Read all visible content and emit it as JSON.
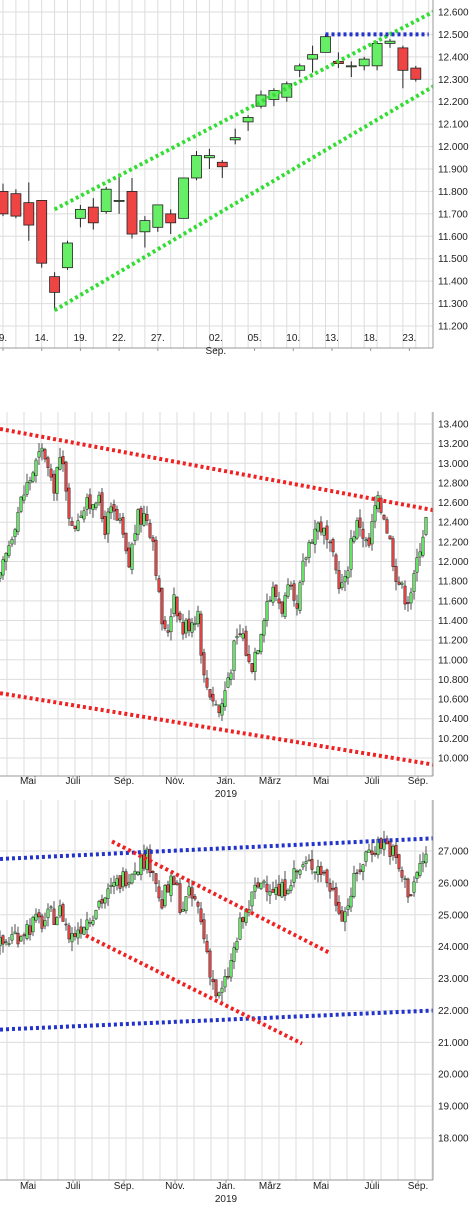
{
  "colors": {
    "up": "#66ee66",
    "down": "#ee4444",
    "wick": "#222222",
    "grid": "#dddddd",
    "frame": "#999999",
    "trend_green": "#33dd33",
    "trend_red": "#ee2222",
    "trend_blue": "#2233cc"
  },
  "chart_data": [
    {
      "type": "candlestick",
      "ylim": [
        11150,
        12650
      ],
      "xlim": [
        0,
        31
      ],
      "yticks": [
        11200,
        11300,
        11400,
        11500,
        11600,
        11700,
        11800,
        11900,
        12000,
        12100,
        12200,
        12300,
        12400,
        12500,
        12600
      ],
      "ytick_labels": [
        "11.200",
        "11.300",
        "11.400",
        "11.500",
        "11.600",
        "11.700",
        "11.800",
        "11.900",
        "12.000",
        "12.100",
        "12.200",
        "12.300",
        "12.400",
        "12.500",
        "12.600"
      ],
      "xticks": [
        {
          "x": 0,
          "label": "9."
        },
        {
          "x": 3,
          "label": "14."
        },
        {
          "x": 6,
          "label": "19."
        },
        {
          "x": 9,
          "label": "22."
        },
        {
          "x": 12,
          "label": "27."
        },
        {
          "x": 16.5,
          "label": "02."
        },
        {
          "x": 19.5,
          "label": "05."
        },
        {
          "x": 22.5,
          "label": "10."
        },
        {
          "x": 25.5,
          "label": "13."
        },
        {
          "x": 28.5,
          "label": "18."
        },
        {
          "x": 31.5,
          "label": "23."
        }
      ],
      "xsublabel": {
        "x": 16.5,
        "label": "Sep."
      },
      "candles": [
        [
          0,
          11800,
          11835,
          11690,
          11700
        ],
        [
          1,
          11790,
          11810,
          11680,
          11690
        ],
        [
          2,
          11750,
          11840,
          11580,
          11650
        ],
        [
          3,
          11760,
          11760,
          11460,
          11480
        ],
        [
          4,
          11420,
          11440,
          11270,
          11350
        ],
        [
          5,
          11460,
          11580,
          11450,
          11570
        ],
        [
          6,
          11680,
          11740,
          11640,
          11720
        ],
        [
          7,
          11730,
          11770,
          11630,
          11660
        ],
        [
          8,
          11710,
          11820,
          11700,
          11810
        ],
        [
          9,
          11760,
          11870,
          11700,
          11760
        ],
        [
          10,
          11800,
          11860,
          11590,
          11610
        ],
        [
          11,
          11620,
          11690,
          11550,
          11670
        ],
        [
          12,
          11640,
          11730,
          11620,
          11740
        ],
        [
          13,
          11700,
          11720,
          11610,
          11660
        ],
        [
          14,
          11680,
          11860,
          11680,
          11860
        ],
        [
          15,
          11860,
          11980,
          11850,
          11960
        ],
        [
          16,
          11950,
          11990,
          11900,
          11960
        ],
        [
          17,
          11930,
          11940,
          11860,
          11910
        ],
        [
          18,
          12030,
          12080,
          12010,
          12040
        ],
        [
          19,
          12110,
          12140,
          12070,
          12130
        ],
        [
          20,
          12180,
          12250,
          12170,
          12230
        ],
        [
          21,
          12210,
          12260,
          12180,
          12250
        ],
        [
          22,
          12220,
          12290,
          12200,
          12280
        ],
        [
          23,
          12340,
          12370,
          12310,
          12360
        ],
        [
          24,
          12390,
          12450,
          12330,
          12410
        ],
        [
          25,
          12420,
          12500,
          12420,
          12490
        ],
        [
          26,
          12380,
          12420,
          12350,
          12370
        ],
        [
          27,
          12360,
          12380,
          12310,
          12360
        ],
        [
          28,
          12360,
          12400,
          12340,
          12390
        ],
        [
          29,
          12360,
          12470,
          12340,
          12460
        ],
        [
          30,
          12460,
          12480,
          12440,
          12470
        ],
        [
          31,
          12440,
          12450,
          12260,
          12340
        ],
        [
          32,
          12350,
          12360,
          12290,
          12300
        ]
      ],
      "trendlines": [
        {
          "color": "green",
          "points": [
            [
              4,
              11720
            ],
            [
              36,
              12680
            ]
          ]
        },
        {
          "color": "green",
          "points": [
            [
              4,
              11270
            ],
            [
              34,
              12290
            ]
          ]
        },
        {
          "color": "blue",
          "points": [
            [
              25,
              12500
            ],
            [
              33,
              12500
            ]
          ]
        }
      ]
    },
    {
      "type": "candlestick",
      "ylim": [
        9850,
        13550
      ],
      "xlim": [
        0,
        420
      ],
      "yticks": [
        10000,
        10200,
        10400,
        10600,
        10800,
        11000,
        11200,
        11400,
        11600,
        11800,
        12000,
        12200,
        12400,
        12600,
        12800,
        13000,
        13200,
        13400
      ],
      "ytick_labels": [
        "10.000",
        "10.200",
        "10.400",
        "10.600",
        "10.800",
        "11.000",
        "11.200",
        "11.400",
        "11.600",
        "11.800",
        "12.000",
        "12.200",
        "12.400",
        "12.600",
        "12.800",
        "13.000",
        "13.200",
        "13.400"
      ],
      "xticks": [
        {
          "x": 28,
          "label": "Mai"
        },
        {
          "x": 73,
          "label": "Juli"
        },
        {
          "x": 124,
          "label": "Sep."
        },
        {
          "x": 175,
          "label": "Nov."
        },
        {
          "x": 226,
          "label": "Jan."
        },
        {
          "x": 270,
          "label": "März"
        },
        {
          "x": 321,
          "label": "Mai"
        },
        {
          "x": 372,
          "label": "Juli"
        },
        {
          "x": 418,
          "label": "Sep."
        }
      ],
      "xsublabel": {
        "x": 226,
        "label": "2019"
      },
      "anchors": [
        [
          0,
          11800
        ],
        [
          14,
          12400
        ],
        [
          24,
          12700
        ],
        [
          34,
          12950
        ],
        [
          44,
          13150
        ],
        [
          52,
          12700
        ],
        [
          58,
          13000
        ],
        [
          64,
          12950
        ],
        [
          72,
          12300
        ],
        [
          80,
          12550
        ],
        [
          88,
          12550
        ],
        [
          96,
          12700
        ],
        [
          104,
          12350
        ],
        [
          112,
          12500
        ],
        [
          122,
          12300
        ],
        [
          128,
          11900
        ],
        [
          136,
          12400
        ],
        [
          146,
          12500
        ],
        [
          154,
          12200
        ],
        [
          160,
          11500
        ],
        [
          166,
          11200
        ],
        [
          174,
          11700
        ],
        [
          182,
          11300
        ],
        [
          190,
          11400
        ],
        [
          198,
          11500
        ],
        [
          204,
          10800
        ],
        [
          212,
          10650
        ],
        [
          220,
          10450
        ],
        [
          226,
          10750
        ],
        [
          234,
          11100
        ],
        [
          242,
          11300
        ],
        [
          250,
          10900
        ],
        [
          258,
          11200
        ],
        [
          266,
          11600
        ],
        [
          274,
          11700
        ],
        [
          282,
          11550
        ],
        [
          290,
          11700
        ],
        [
          296,
          11400
        ],
        [
          304,
          12000
        ],
        [
          312,
          12300
        ],
        [
          320,
          12400
        ],
        [
          328,
          12150
        ],
        [
          336,
          11900
        ],
        [
          344,
          11700
        ],
        [
          352,
          12300
        ],
        [
          360,
          12400
        ],
        [
          368,
          12100
        ],
        [
          376,
          12600
        ],
        [
          384,
          12500
        ],
        [
          390,
          12200
        ],
        [
          396,
          11900
        ],
        [
          402,
          11700
        ],
        [
          408,
          11650
        ],
        [
          414,
          11800
        ],
        [
          420,
          12200
        ],
        [
          428,
          12500
        ]
      ],
      "trendlines": [
        {
          "color": "red",
          "points": [
            [
              0,
              13350
            ],
            [
              435,
              12520
            ]
          ]
        },
        {
          "color": "red",
          "points": [
            [
              0,
              10660
            ],
            [
              435,
              9930
            ]
          ]
        }
      ]
    },
    {
      "type": "candlestick",
      "ylim": [
        17300,
        27450
      ],
      "xlim": [
        0,
        420
      ],
      "yticks": [
        18000,
        19000,
        20000,
        21000,
        22000,
        23000,
        24000,
        25000,
        26000,
        27000
      ],
      "ytick_labels": [
        "18.000",
        "19.000",
        "20.000",
        "21.000",
        "22.000",
        "23.000",
        "24.000",
        "25.000",
        "26.000",
        "27.000"
      ],
      "xticks": [
        {
          "x": 28,
          "label": "Mai"
        },
        {
          "x": 73,
          "label": "Juli"
        },
        {
          "x": 124,
          "label": "Sep."
        },
        {
          "x": 175,
          "label": "Nov."
        },
        {
          "x": 226,
          "label": "Jan."
        },
        {
          "x": 270,
          "label": "März"
        },
        {
          "x": 321,
          "label": "Mai"
        },
        {
          "x": 372,
          "label": "Juli"
        },
        {
          "x": 418,
          "label": "Sep."
        }
      ],
      "xsublabel": {
        "x": 226,
        "label": "2019"
      },
      "anchors": [
        [
          0,
          24000
        ],
        [
          12,
          24300
        ],
        [
          22,
          24500
        ],
        [
          32,
          24700
        ],
        [
          44,
          24800
        ],
        [
          54,
          25000
        ],
        [
          62,
          25100
        ],
        [
          70,
          24200
        ],
        [
          78,
          24600
        ],
        [
          88,
          24900
        ],
        [
          98,
          25400
        ],
        [
          108,
          25600
        ],
        [
          118,
          26000
        ],
        [
          128,
          26300
        ],
        [
          136,
          26600
        ],
        [
          146,
          26800
        ],
        [
          154,
          26500
        ],
        [
          160,
          25200
        ],
        [
          166,
          25700
        ],
        [
          174,
          26000
        ],
        [
          182,
          25200
        ],
        [
          190,
          25600
        ],
        [
          198,
          25200
        ],
        [
          206,
          24000
        ],
        [
          212,
          23000
        ],
        [
          218,
          22300
        ],
        [
          224,
          22700
        ],
        [
          232,
          23600
        ],
        [
          240,
          24600
        ],
        [
          248,
          25200
        ],
        [
          256,
          25800
        ],
        [
          264,
          26100
        ],
        [
          272,
          25900
        ],
        [
          280,
          25600
        ],
        [
          288,
          26100
        ],
        [
          296,
          26300
        ],
        [
          304,
          26500
        ],
        [
          312,
          26600
        ],
        [
          320,
          26500
        ],
        [
          328,
          26000
        ],
        [
          336,
          25500
        ],
        [
          344,
          25000
        ],
        [
          352,
          25800
        ],
        [
          360,
          26500
        ],
        [
          368,
          27000
        ],
        [
          376,
          27200
        ],
        [
          384,
          27300
        ],
        [
          392,
          27000
        ],
        [
          398,
          26500
        ],
        [
          404,
          26000
        ],
        [
          410,
          25700
        ],
        [
          416,
          26200
        ],
        [
          422,
          26600
        ],
        [
          428,
          27000
        ]
      ],
      "trendlines": [
        {
          "color": "blue",
          "points": [
            [
              0,
              26750
            ],
            [
              435,
              27400
            ]
          ]
        },
        {
          "color": "blue",
          "points": [
            [
              0,
              21400
            ],
            [
              435,
              22000
            ]
          ]
        },
        {
          "color": "red",
          "points": [
            [
              112,
              27300
            ],
            [
              330,
              23800
            ]
          ]
        },
        {
          "color": "red",
          "points": [
            [
              86,
              24350
            ],
            [
              302,
              20960
            ]
          ]
        }
      ]
    }
  ]
}
